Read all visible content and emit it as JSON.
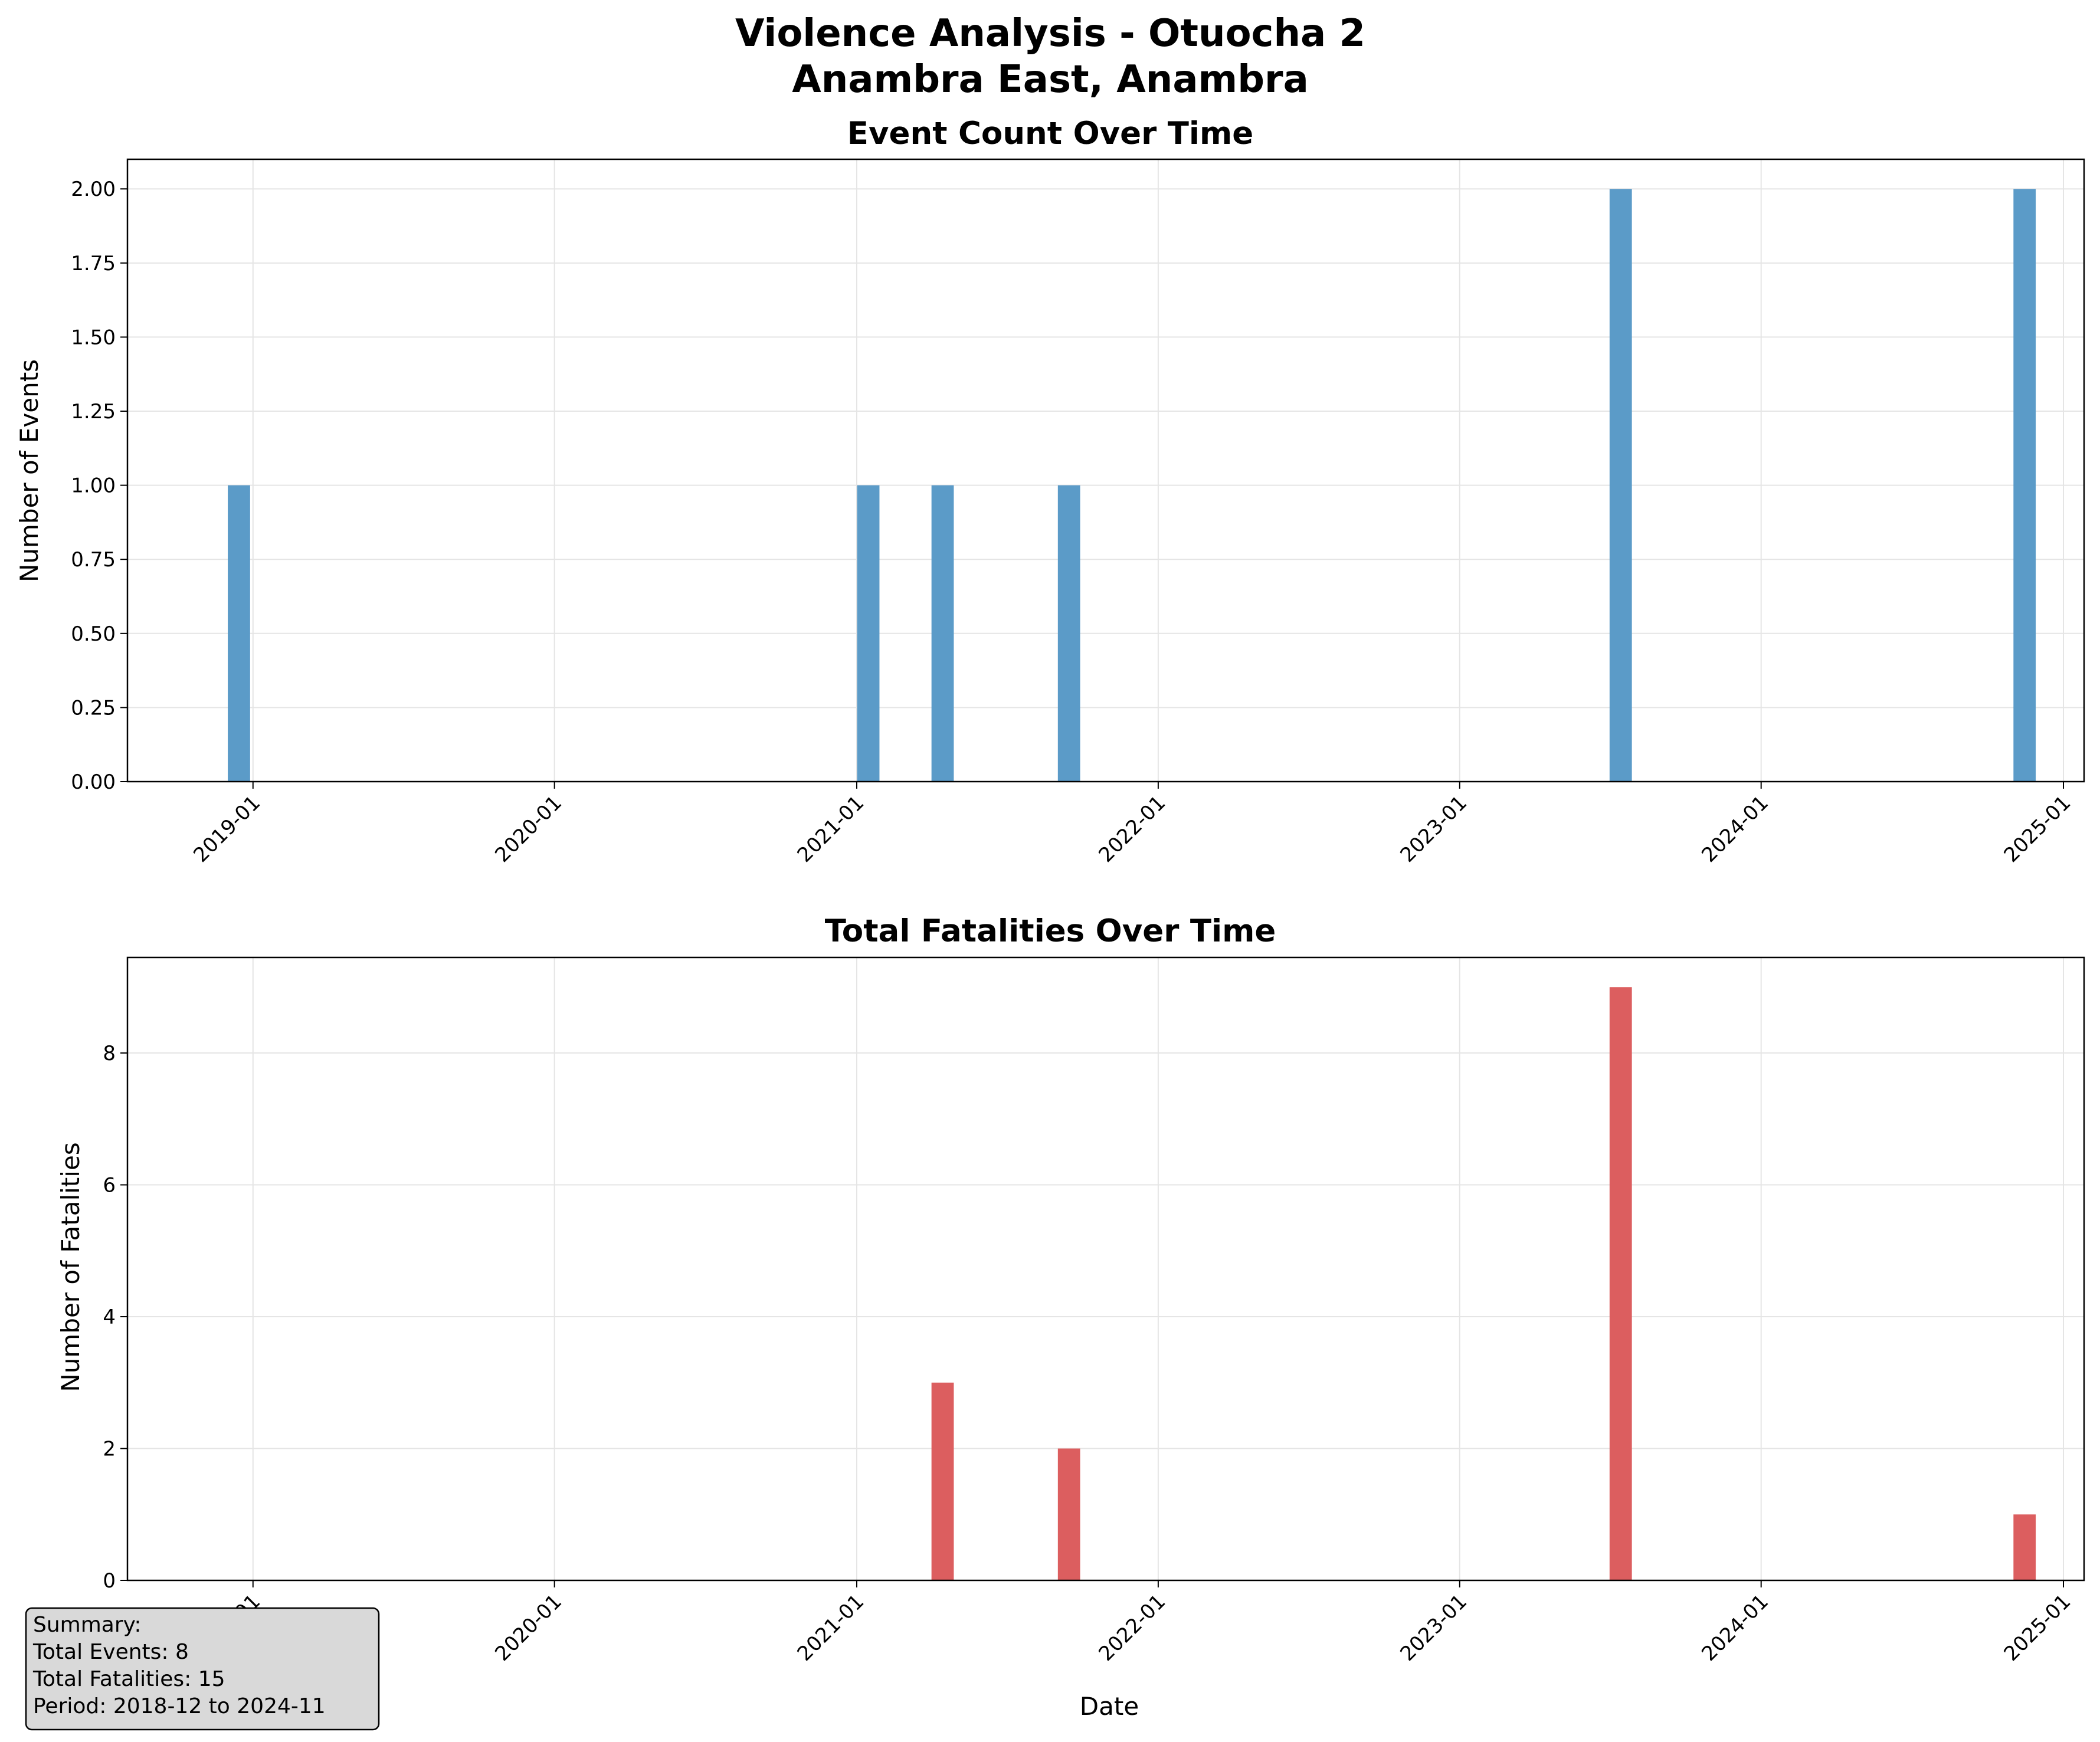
{
  "figure": {
    "title_line1": "Violence Analysis - Otuocha 2",
    "title_line2": "Anambra East, Anambra"
  },
  "summary": {
    "heading": "Summary:",
    "total_events": "Total Events: 8",
    "total_fatalities": "Total Fatalities: 15",
    "period": "Period: 2018-12 to 2024-11"
  },
  "colors": {
    "events_bar": "#5b9bc8",
    "fatalities_bar": "#dc5e5f",
    "grid": "#e5e5e5",
    "summary_box_fill": "#d9d9d9"
  },
  "chart_data": [
    {
      "type": "bar",
      "title": "Event Count Over Time",
      "xlabel": "",
      "ylabel": "Number of Events",
      "x_ticks": [
        "2019-01",
        "2020-01",
        "2021-01",
        "2022-01",
        "2023-01",
        "2024-01",
        "2025-01"
      ],
      "y_ticks": [
        "0.00",
        "0.25",
        "0.50",
        "0.75",
        "1.00",
        "1.25",
        "1.50",
        "1.75",
        "2.00"
      ],
      "ylim": [
        0,
        2.1
      ],
      "xlim": [
        "2018-08-02",
        "2025-01-26"
      ],
      "grid": true,
      "categories": [
        "2018-12",
        "2021-01",
        "2021-04",
        "2021-09",
        "2023-07",
        "2024-11"
      ],
      "values": [
        1,
        1,
        1,
        1,
        2,
        2
      ]
    },
    {
      "type": "bar",
      "title": "Total Fatalities Over Time",
      "xlabel": "Date",
      "ylabel": "Number of Fatalities",
      "x_ticks": [
        "2019-01",
        "2020-01",
        "2021-01",
        "2022-01",
        "2023-01",
        "2024-01",
        "2025-01"
      ],
      "y_ticks": [
        "0",
        "2",
        "4",
        "6",
        "8"
      ],
      "ylim": [
        0,
        9.45
      ],
      "xlim": [
        "2018-08-02",
        "2025-01-26"
      ],
      "grid": true,
      "categories": [
        "2018-12",
        "2021-01",
        "2021-04",
        "2021-09",
        "2023-07",
        "2024-11"
      ],
      "values": [
        0,
        0,
        3,
        2,
        9,
        1
      ]
    }
  ]
}
